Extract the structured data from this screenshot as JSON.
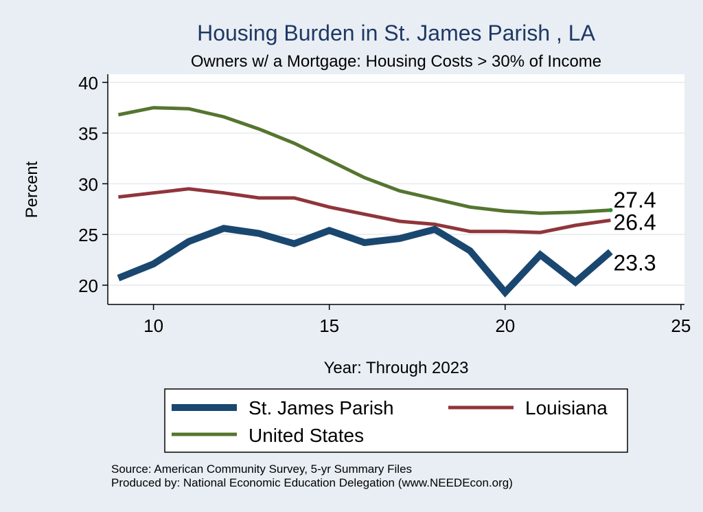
{
  "chart_data": {
    "type": "line",
    "title": "Housing Burden in St. James Parish , LA",
    "subtitle": "Owners w/ a Mortgage: Housing Costs > 30% of Income",
    "xlabel": "Year: Through 2023",
    "ylabel": "Percent",
    "xlim": [
      8.7,
      25.1
    ],
    "ylim": [
      18.1,
      40.8
    ],
    "xticks": [
      "10",
      "15",
      "20",
      "25"
    ],
    "yticks": [
      "20",
      "25",
      "30",
      "35",
      "40"
    ],
    "grid": true,
    "legend_position": "bottom",
    "x": [
      9,
      10,
      11,
      12,
      13,
      14,
      15,
      16,
      17,
      18,
      19,
      20,
      21,
      22,
      23
    ],
    "series": [
      {
        "name": "St. James Parish",
        "color": "#1a476f",
        "values": [
          20.7,
          22.1,
          24.3,
          25.6,
          25.1,
          24.1,
          25.4,
          24.2,
          24.6,
          25.5,
          23.4,
          19.3,
          23.0,
          20.3,
          23.3
        ],
        "end_label": "23.3"
      },
      {
        "name": "Louisiana",
        "color": "#90353b",
        "values": [
          28.7,
          29.1,
          29.5,
          29.1,
          28.6,
          28.6,
          27.7,
          27.0,
          26.3,
          26.0,
          25.3,
          25.3,
          25.2,
          25.9,
          26.4
        ],
        "end_label": "26.4"
      },
      {
        "name": "United States",
        "color": "#55752f",
        "values": [
          36.8,
          37.5,
          37.4,
          36.6,
          35.4,
          34.0,
          32.3,
          30.6,
          29.3,
          28.5,
          27.7,
          27.3,
          27.1,
          27.2,
          27.4
        ],
        "end_label": "27.4"
      }
    ]
  },
  "notes": [
    "Source: American Community Survey, 5-yr Summary Files",
    "Produced by: National Economic Education Delegation (www.NEEDEcon.org)"
  ]
}
